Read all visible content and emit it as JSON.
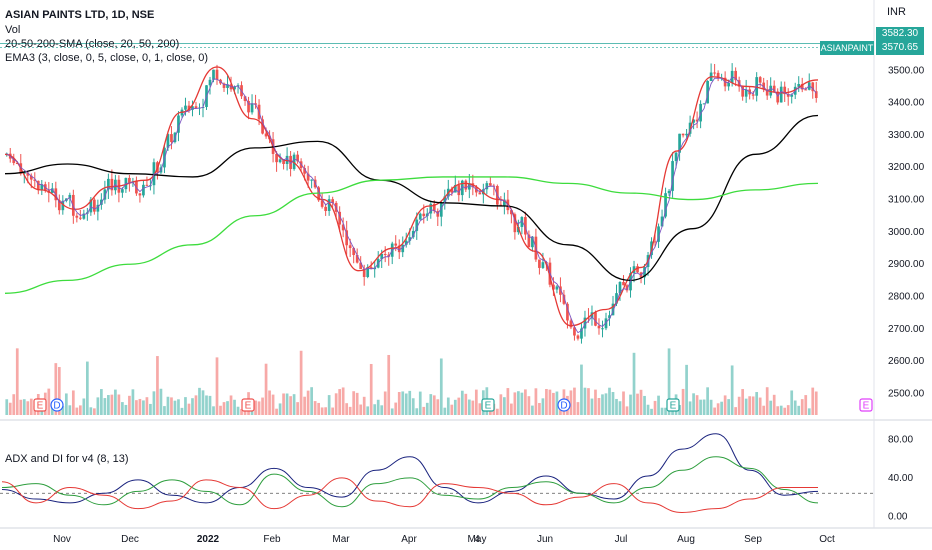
{
  "legend": {
    "title": "ASIAN PAINTS LTD, 1D, NSE",
    "vol": "Vol",
    "sma": "20-50-200-SMA (close, 20, 50, 200)",
    "ema": "EMA3 (3, close, 0, 5, close, 0, 1, close, 0)",
    "adx": "ADX and DI for v4 (8, 13)"
  },
  "currency": "INR",
  "price_tags": {
    "high": "3582.30",
    "symbol": "ASIANPAINT",
    "last": "3570.65"
  },
  "event_markers": [
    "E",
    "D",
    "E",
    "E",
    "D",
    "E",
    "E"
  ],
  "colors": {
    "up": "#26a69a",
    "down": "#ef5350",
    "sma20": "#e53935",
    "sma50": "#000000",
    "sma200": "#3ddc3d",
    "ema3": "#7e57c2",
    "adx": "#1a237e",
    "di_plus": "#2e9e3e",
    "di_minus": "#e53935"
  },
  "chart_data": [
    {
      "type": "line",
      "subtype": "candlestick",
      "series": [
        {
          "name": "20",
          "x": [
            "Oct",
            "Nov",
            "Nov",
            "Dec",
            "Dec",
            "2022",
            "2022",
            "Feb",
            "Feb",
            "Mar",
            "Mar",
            "Apr",
            "Apr",
            "4",
            "May",
            "Jun",
            "Jun",
            "Jul",
            "Jul",
            "Aug",
            "Aug",
            "Sep",
            "Sep",
            "Oct"
          ],
          "values": [
            3240,
            3130,
            3070,
            3140,
            3160,
            3370,
            3510,
            3350,
            3220,
            3100,
            2880,
            2950,
            3080,
            3150,
            3100,
            2940,
            2710,
            2760,
            2890,
            3250,
            3480,
            3450,
            3430,
            3470
          ]
        },
        {
          "name": "50",
          "x": [
            "Oct",
            "Nov",
            "Dec",
            "2022",
            "Feb",
            "Mar",
            "Apr",
            "4",
            "May",
            "Jun",
            "Jul",
            "Aug",
            "Sep",
            "Oct"
          ],
          "values": [
            3180,
            3210,
            3180,
            3170,
            3260,
            3280,
            3160,
            3090,
            3080,
            2960,
            2850,
            3010,
            3240,
            3360
          ]
        },
        {
          "name": "200",
          "x": [
            "Oct",
            "Nov",
            "Dec",
            "2022",
            "Feb",
            "Mar",
            "Apr",
            "4",
            "May",
            "Jun",
            "Jul",
            "Aug",
            "Sep",
            "Oct"
          ],
          "values": [
            2810,
            2850,
            2900,
            2960,
            3050,
            3120,
            3160,
            3170,
            3170,
            3150,
            3120,
            3100,
            3130,
            3150
          ]
        }
      ],
      "x_ticks": [
        "Nov",
        "Dec",
        "2022",
        "Feb",
        "Mar",
        "Apr",
        "4",
        "May",
        "Jun",
        "Jul",
        "Aug",
        "Sep",
        "Oct"
      ],
      "y_ticks": [
        2500,
        2600,
        2700,
        2800,
        2900,
        3000,
        3100,
        3200,
        3300,
        3400,
        3500
      ],
      "ylim": [
        2480,
        3640
      ],
      "high_line": 3582.3,
      "last_price": 3570.65,
      "grid": false
    },
    {
      "type": "line",
      "series": [
        {
          "name": "ADX",
          "values": [
            28,
            18,
            14,
            24,
            38,
            22,
            14,
            30,
            50,
            30,
            20,
            48,
            62,
            30,
            14,
            26,
            42,
            24,
            18,
            42,
            70,
            86,
            48,
            22,
            26
          ]
        },
        {
          "name": "DI+",
          "values": [
            30,
            34,
            22,
            12,
            26,
            38,
            26,
            12,
            44,
            26,
            10,
            34,
            40,
            22,
            18,
            30,
            36,
            24,
            14,
            30,
            48,
            62,
            50,
            28,
            14
          ]
        },
        {
          "name": "DI-",
          "values": [
            36,
            14,
            30,
            22,
            8,
            16,
            38,
            30,
            8,
            22,
            40,
            16,
            10,
            34,
            30,
            24,
            12,
            20,
            34,
            14,
            4,
            8,
            18,
            30,
            30
          ]
        }
      ],
      "y_ticks": [
        0,
        40,
        80
      ],
      "y_tick_labels": [
        "0.00",
        "40.00",
        "80.00"
      ],
      "ref_line": 24,
      "ylim": [
        -8,
        92
      ]
    }
  ]
}
